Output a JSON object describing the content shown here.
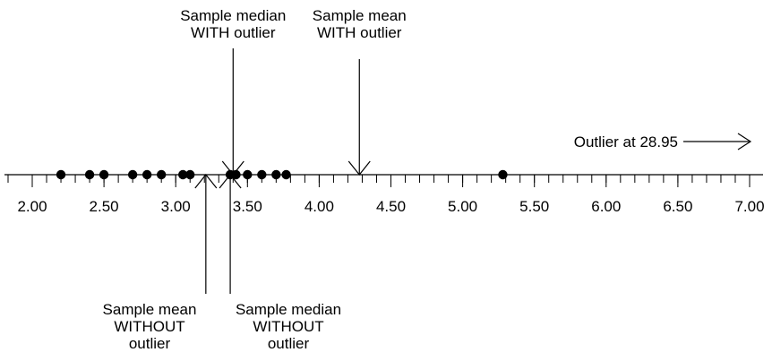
{
  "axis": {
    "min": 2.0,
    "max": 7.0,
    "major_ticks": [
      2.0,
      2.5,
      3.0,
      3.5,
      4.0,
      4.5,
      5.0,
      5.5,
      6.0,
      6.5,
      7.0
    ],
    "major_tick_labels": [
      "2.00",
      "2.50",
      "3.00",
      "3.50",
      "4.00",
      "4.50",
      "5.00",
      "5.50",
      "6.00",
      "6.50",
      "7.00"
    ],
    "minor_step": 0.1
  },
  "points": [
    2.2,
    2.4,
    2.5,
    2.7,
    2.8,
    2.9,
    3.05,
    3.1,
    3.38,
    3.42,
    3.5,
    3.6,
    3.7,
    3.77,
    5.28
  ],
  "markers": {
    "median_with": {
      "value": 3.4,
      "lines": [
        "Sample median",
        "WITH outlier"
      ]
    },
    "mean_with": {
      "value": 4.28,
      "lines": [
        "Sample mean",
        "WITH outlier"
      ]
    },
    "mean_without": {
      "value": 3.21,
      "lines": [
        "Sample mean",
        "WITHOUT",
        "outlier"
      ]
    },
    "median_without": {
      "value": 3.38,
      "lines": [
        "Sample median",
        "WITHOUT",
        "outlier"
      ]
    }
  },
  "outlier": {
    "label": "Outlier at 28.95",
    "value": 28.95
  },
  "colors": {
    "ink": "#000000",
    "background": "#ffffff"
  }
}
